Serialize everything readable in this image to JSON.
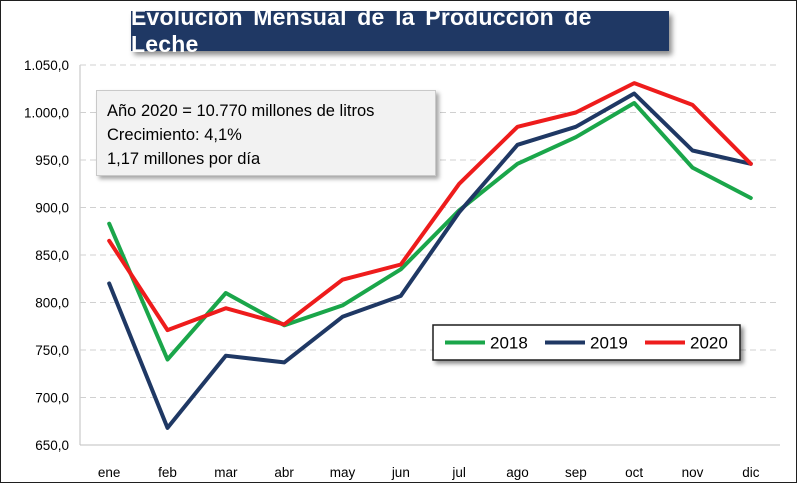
{
  "chart_data": {
    "type": "line",
    "title": "Evolución Mensual de la Producción de Leche",
    "xlabel": "",
    "ylabel": "",
    "categories": [
      "ene",
      "feb",
      "mar",
      "abr",
      "may",
      "jun",
      "jul",
      "ago",
      "sep",
      "oct",
      "nov",
      "dic"
    ],
    "ylim": [
      650,
      1050
    ],
    "y_ticks": [
      650,
      700,
      750,
      800,
      850,
      900,
      950,
      1000,
      1050
    ],
    "y_tick_labels": [
      "650,0",
      "700,0",
      "750,0",
      "800,0",
      "850,0",
      "900,0",
      "950,0",
      "1.000,0",
      "1.050,0"
    ],
    "grid": true,
    "legend_position": "bottom-right",
    "series": [
      {
        "name": "2018",
        "color": "#1aa64a",
        "values": [
          883,
          740,
          810,
          776,
          797,
          835,
          897,
          946,
          974,
          1010,
          942,
          910
        ]
      },
      {
        "name": "2019",
        "color": "#1f3864",
        "values": [
          820,
          668,
          744,
          737,
          785,
          807,
          895,
          966,
          985,
          1020,
          960,
          946
        ]
      },
      {
        "name": "2020",
        "color": "#ee1c1c",
        "values": [
          865,
          771,
          794,
          777,
          824,
          840,
          925,
          985,
          1000,
          1031,
          1008,
          946
        ]
      }
    ],
    "annotation_lines": [
      "Año 2020 = 10.770 millones de litros",
      "Crecimiento: 4,1%",
      "1,17 millones por día"
    ]
  }
}
